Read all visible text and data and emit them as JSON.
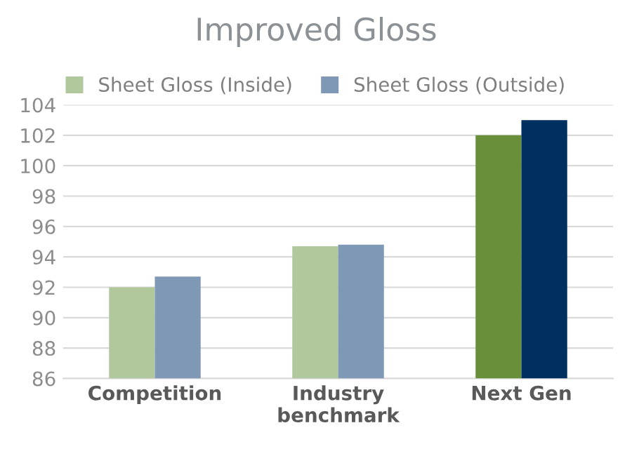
{
  "chart_data": {
    "type": "bar",
    "title": "Improved Gloss",
    "categories": [
      "Competition",
      "Industry\nbenchmark",
      "Next Gen"
    ],
    "series": [
      {
        "name": "Sheet Gloss (Inside)",
        "color": "#b0c89c",
        "colors": [
          "#b0c89c",
          "#b0c89c",
          "#6a8f3a"
        ],
        "values": [
          92.0,
          94.7,
          102.0
        ]
      },
      {
        "name": "Sheet Gloss (Outside)",
        "color": "#7f98b5",
        "colors": [
          "#7f98b5",
          "#7f98b5",
          "#003060"
        ],
        "values": [
          92.7,
          94.8,
          103.0
        ]
      }
    ],
    "ylim": [
      86,
      104
    ],
    "yticks": [
      86,
      88,
      90,
      92,
      94,
      96,
      98,
      100,
      102,
      104
    ],
    "grid": "y",
    "legend": "top"
  }
}
